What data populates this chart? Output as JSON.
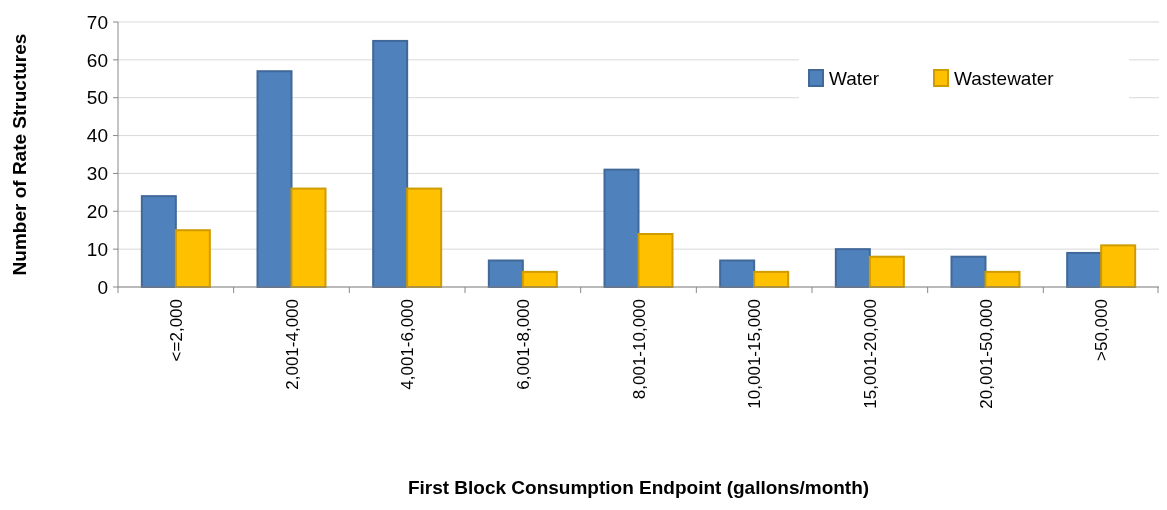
{
  "chart_data": {
    "type": "bar",
    "xlabel": "First Block Consumption Endpoint (gallons/month)",
    "ylabel": "Number of Rate Structures",
    "categories": [
      "<=2,000",
      "2,001-4,000",
      "4,001-6,000",
      "6,001-8,000",
      "8,001-10,000",
      "10,001-15,000",
      "15,001-20,000",
      "20,001-50,000",
      ">50,000"
    ],
    "series": [
      {
        "name": "Water",
        "color": "#4f81bd",
        "values": [
          24,
          57,
          65,
          7,
          31,
          7,
          10,
          8,
          9
        ]
      },
      {
        "name": "Wastewater",
        "color": "#ffc000",
        "values": [
          15,
          26,
          26,
          4,
          14,
          4,
          8,
          4,
          11
        ]
      }
    ],
    "ylim": [
      0,
      70
    ],
    "yticks": [
      0,
      10,
      20,
      30,
      40,
      50,
      60,
      70
    ],
    "grid": "y",
    "legend": "top right"
  }
}
